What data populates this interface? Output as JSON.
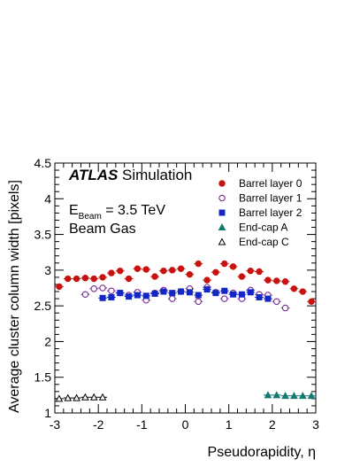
{
  "chart_data": {
    "type": "scatter",
    "title": "",
    "xlabel": "Pseudorapidity, η",
    "ylabel": "Average cluster column width [pixels]",
    "xlim": [
      -3,
      3
    ],
    "ylim": [
      1,
      4.5
    ],
    "x_ticks": [
      "-3",
      "-2",
      "-1",
      "0",
      "1",
      "2",
      "3"
    ],
    "y_ticks": [
      "1",
      "1.5",
      "2",
      "2.5",
      "3",
      "3.5",
      "4",
      "4.5"
    ],
    "grid": false,
    "legend_placement": "top-right",
    "annotations": {
      "brand": "ATLAS",
      "brand_suffix": "Simulation",
      "energy_prefix": "E",
      "energy_sub": "Beam",
      "energy_value": " = 3.5 TeV",
      "sample": "Beam Gas"
    },
    "series": [
      {
        "name": "Barrel layer 0",
        "marker": "filled-circle",
        "color": "#c8120f",
        "x": [
          -2.9,
          -2.7,
          -2.5,
          -2.3,
          -2.1,
          -1.9,
          -1.7,
          -1.5,
          -1.3,
          -1.1,
          -0.9,
          -0.7,
          -0.5,
          -0.3,
          -0.1,
          0.1,
          0.3,
          0.5,
          0.7,
          0.9,
          1.1,
          1.3,
          1.5,
          1.7,
          1.9,
          2.1,
          2.3,
          2.5,
          2.7,
          2.9
        ],
        "y": [
          2.77,
          2.88,
          2.88,
          2.89,
          2.88,
          2.9,
          2.96,
          2.99,
          2.88,
          3.02,
          3.01,
          2.91,
          2.99,
          3.0,
          3.02,
          2.94,
          3.09,
          2.86,
          2.97,
          3.09,
          3.05,
          2.91,
          2.99,
          2.98,
          2.86,
          2.85,
          2.84,
          2.74,
          2.7,
          2.56
        ]
      },
      {
        "name": "Barrel layer 1",
        "marker": "open-circle",
        "color": "#7b2a94",
        "x": [
          -2.3,
          -2.1,
          -1.9,
          -1.7,
          -1.5,
          -1.3,
          -1.1,
          -0.9,
          -0.7,
          -0.5,
          -0.3,
          -0.1,
          0.1,
          0.3,
          0.5,
          0.7,
          0.9,
          1.1,
          1.3,
          1.5,
          1.7,
          1.9,
          2.1,
          2.3
        ],
        "y": [
          2.66,
          2.74,
          2.75,
          2.71,
          2.68,
          2.65,
          2.69,
          2.58,
          2.68,
          2.72,
          2.6,
          2.7,
          2.74,
          2.56,
          2.76,
          2.69,
          2.6,
          2.68,
          2.6,
          2.72,
          2.66,
          2.65,
          2.56,
          2.47
        ]
      },
      {
        "name": "Barrel layer 2",
        "marker": "filled-square",
        "color": "#1327c4",
        "x": [
          -1.9,
          -1.7,
          -1.5,
          -1.3,
          -1.1,
          -0.9,
          -0.7,
          -0.5,
          -0.3,
          -0.1,
          0.1,
          0.3,
          0.5,
          0.7,
          0.9,
          1.1,
          1.3,
          1.5,
          1.7,
          1.9
        ],
        "y": [
          2.61,
          2.62,
          2.68,
          2.63,
          2.65,
          2.64,
          2.67,
          2.7,
          2.68,
          2.7,
          2.69,
          2.65,
          2.73,
          2.68,
          2.71,
          2.66,
          2.66,
          2.69,
          2.62,
          2.6
        ]
      },
      {
        "name": "End-cap A",
        "marker": "filled-triangle",
        "color": "#137a70",
        "x": [
          1.9,
          2.1,
          2.3,
          2.5,
          2.7,
          2.9
        ],
        "y": [
          1.25,
          1.25,
          1.24,
          1.24,
          1.24,
          1.24
        ]
      },
      {
        "name": "End-cap C",
        "marker": "open-triangle",
        "color": "#000000",
        "x": [
          -2.9,
          -2.7,
          -2.5,
          -2.3,
          -2.1,
          -1.9
        ],
        "y": [
          1.2,
          1.21,
          1.21,
          1.22,
          1.22,
          1.22
        ]
      }
    ]
  }
}
